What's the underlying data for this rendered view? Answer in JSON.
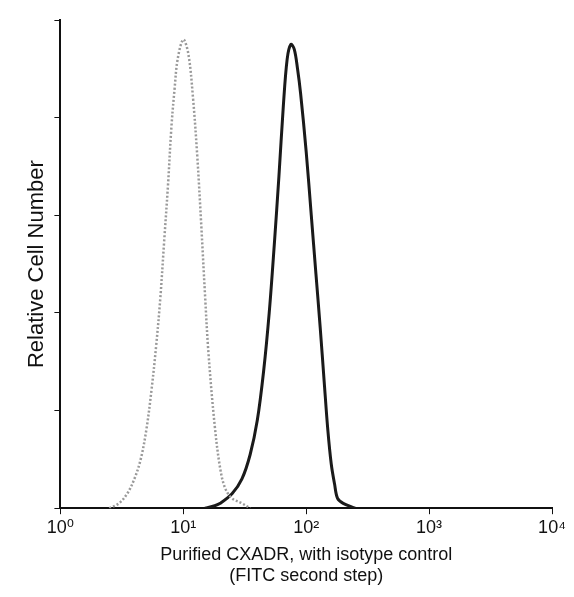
{
  "chart_data": {
    "type": "line",
    "x_label": [
      "Purified CXADR, with isotype control",
      "(FITC second step)"
    ],
    "y_label": "Relative Cell Number",
    "log": "x",
    "grid": false,
    "tick_labels": "x",
    "xlim": [
      1,
      10000
    ],
    "xticks": [
      {
        "value": 1,
        "label": "10⁰"
      },
      {
        "value": 10,
        "label": "10¹"
      },
      {
        "value": 100,
        "label": "10²"
      },
      {
        "value": 1000,
        "label": "10³"
      },
      {
        "value": 10000,
        "label": "10⁴"
      }
    ],
    "ylim": [
      0,
      100
    ],
    "yticks": [
      0,
      20,
      40,
      60,
      80,
      100
    ],
    "series": [
      {
        "color": "#9a9a9a",
        "line_style": "dotted",
        "x": [
          2.5,
          3,
          3.5,
          4,
          4.5,
          5,
          5.5,
          6,
          6.5,
          7,
          7.5,
          8,
          8.5,
          9,
          10,
          11,
          12,
          13,
          14,
          15,
          16,
          18,
          20,
          22,
          25,
          30,
          35
        ],
        "values": [
          0,
          1,
          3,
          6,
          10,
          16,
          24,
          33,
          43,
          55,
          66,
          78,
          86,
          92,
          96,
          93,
          84,
          72,
          58,
          44,
          32,
          17,
          8,
          4,
          2,
          1,
          0
        ]
      },
      {
        "color": "#1a1a1a",
        "line_style": "solid",
        "x": [
          15,
          18,
          20,
          25,
          30,
          35,
          40,
          45,
          50,
          55,
          60,
          65,
          70,
          75,
          80,
          85,
          90,
          100,
          110,
          120,
          130,
          140,
          150,
          160,
          170,
          180,
          200,
          250
        ],
        "values": [
          0,
          0.5,
          1,
          3,
          6,
          11,
          18,
          28,
          40,
          54,
          68,
          82,
          92,
          95,
          94,
          90,
          85,
          73,
          60,
          48,
          37,
          26,
          16,
          9,
          5,
          2,
          1,
          0
        ]
      }
    ]
  }
}
